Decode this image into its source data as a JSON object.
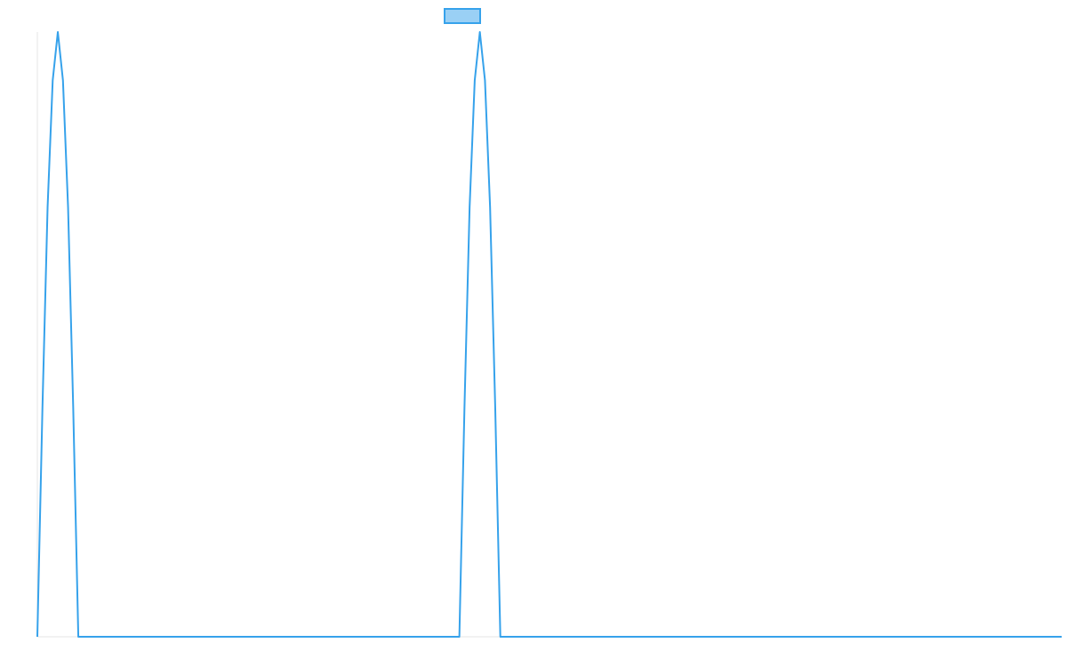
{
  "chart_data": {
    "type": "line",
    "x": [
      0,
      0.5,
      1,
      1.5,
      2,
      2.5,
      3,
      3.5,
      4,
      41.2,
      41.7,
      42.2,
      42.7,
      43.2,
      43.7,
      44.2,
      44.7,
      45.2,
      100
    ],
    "series": [
      {
        "color": "#36a2eb",
        "values": [
          0,
          0.38,
          0.71,
          0.92,
          1,
          0.92,
          0.71,
          0.38,
          0,
          0,
          0.38,
          0.71,
          0.92,
          1,
          0.92,
          0.71,
          0.38,
          0,
          0
        ]
      }
    ],
    "xlim": [
      0,
      100
    ],
    "ylim": [
      0,
      1
    ]
  }
}
